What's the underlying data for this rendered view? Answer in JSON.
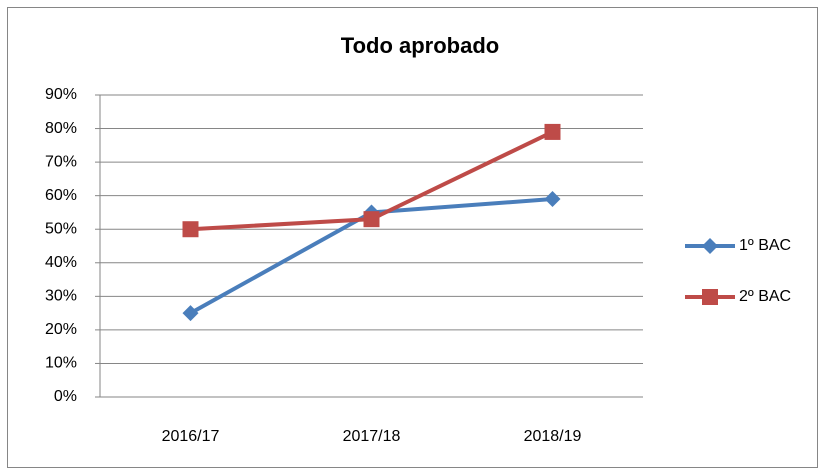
{
  "chart_data": {
    "type": "line",
    "title": "Todo aprobado",
    "categories": [
      "2016/17",
      "2017/18",
      "2018/19"
    ],
    "series": [
      {
        "name": "1º BAC",
        "color": "#4a7ebb",
        "marker": "diamond",
        "values": [
          25,
          55,
          59
        ]
      },
      {
        "name": "2º BAC",
        "color": "#be4b48",
        "marker": "square",
        "values": [
          50,
          53,
          79
        ]
      }
    ],
    "ylim": [
      0,
      90
    ],
    "yticks": [
      {
        "value": 0,
        "label": "0%"
      },
      {
        "value": 10,
        "label": "10%"
      },
      {
        "value": 20,
        "label": "20%"
      },
      {
        "value": 30,
        "label": "30%"
      },
      {
        "value": 40,
        "label": "40%"
      },
      {
        "value": 50,
        "label": "50%"
      },
      {
        "value": 60,
        "label": "60%"
      },
      {
        "value": 70,
        "label": "70%"
      },
      {
        "value": 80,
        "label": "80%"
      },
      {
        "value": 90,
        "label": "90%"
      }
    ],
    "grid": true,
    "legend": "right"
  }
}
